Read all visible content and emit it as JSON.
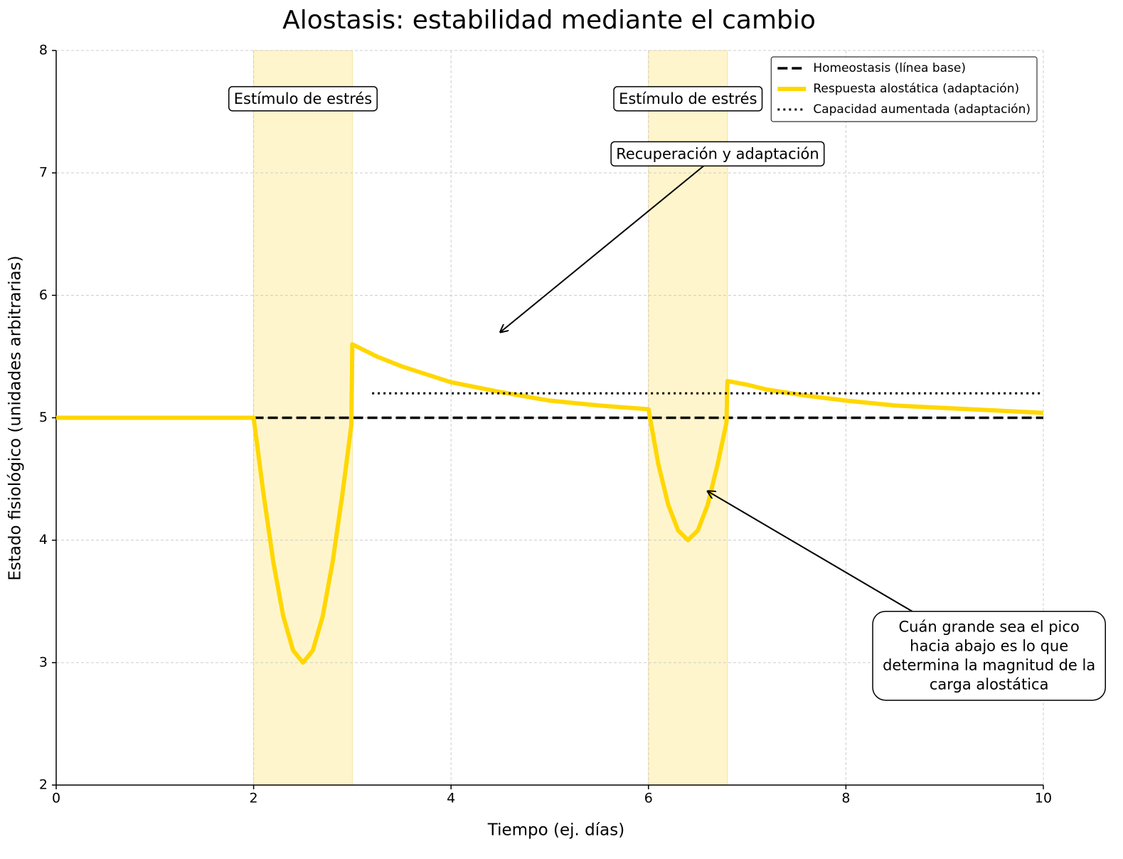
{
  "chart_data": {
    "type": "line",
    "title": "Alostasis: estabilidad mediante el cambio",
    "xlabel": "Tiempo (ej. días)",
    "ylabel": "Estado fisiológico (unidades arbitrarias)",
    "xlim": [
      0,
      10
    ],
    "ylim": [
      2,
      8
    ],
    "xticks": [
      0,
      2,
      4,
      6,
      8,
      10
    ],
    "yticks": [
      2,
      3,
      4,
      5,
      6,
      7,
      8
    ],
    "grid": true,
    "legend": "upper right",
    "spans": [
      {
        "x": [
          2,
          3
        ],
        "color": "#fff5cc"
      },
      {
        "x": [
          6,
          6.8
        ],
        "color": "#fff5cc"
      }
    ],
    "series": [
      {
        "name": "Homeostasis (línea base)",
        "color": "#000000",
        "style": "dashed",
        "x": [
          2,
          10
        ],
        "values": [
          5,
          5
        ]
      },
      {
        "name": "Respuesta alostática (adaptación)",
        "color": "#ffd700",
        "style": "solid",
        "x": [
          0,
          2,
          2.1,
          2.2,
          2.3,
          2.4,
          2.5,
          2.6,
          2.7,
          2.8,
          2.9,
          2.99,
          3,
          3.25,
          3.5,
          4,
          4.5,
          5,
          5.5,
          6,
          6.1,
          6.2,
          6.3,
          6.4,
          6.5,
          6.6,
          6.7,
          6.79,
          6.8,
          7,
          7.2,
          7.6,
          8,
          8.5,
          9,
          9.5,
          10
        ],
        "values": [
          5,
          5,
          4.38,
          3.82,
          3.38,
          3.1,
          3,
          3.1,
          3.38,
          3.82,
          4.38,
          4.94,
          5.6,
          5.5,
          5.42,
          5.29,
          5.21,
          5.14,
          5.1,
          5.07,
          4.62,
          4.29,
          4.08,
          4,
          4.08,
          4.29,
          4.62,
          4.96,
          5.3,
          5.27,
          5.23,
          5.18,
          5.14,
          5.1,
          5.08,
          5.06,
          5.04
        ]
      },
      {
        "name": "Capacidad aumentada (adaptación)",
        "color": "#000000",
        "style": "dotted",
        "x": [
          3.2,
          10
        ],
        "values": [
          5.2,
          5.2
        ]
      }
    ],
    "annotations": [
      {
        "lines": [
          "Estímulo de estrés"
        ],
        "xytext": [
          2.5,
          7.6
        ]
      },
      {
        "lines": [
          "Estímulo de estrés"
        ],
        "xytext": [
          6.4,
          7.6
        ]
      },
      {
        "lines": [
          "Recuperación y adaptación"
        ],
        "xytext": [
          6.7,
          7.15
        ],
        "xy": [
          4.5,
          5.7
        ]
      },
      {
        "lines": [
          "Cuán grande sea el pico",
          "hacia abajo es lo que",
          "determina la magnitud de la",
          "carga alostática"
        ],
        "xytext": [
          9.45,
          3.05
        ],
        "xy": [
          6.6,
          4.4
        ]
      }
    ]
  }
}
